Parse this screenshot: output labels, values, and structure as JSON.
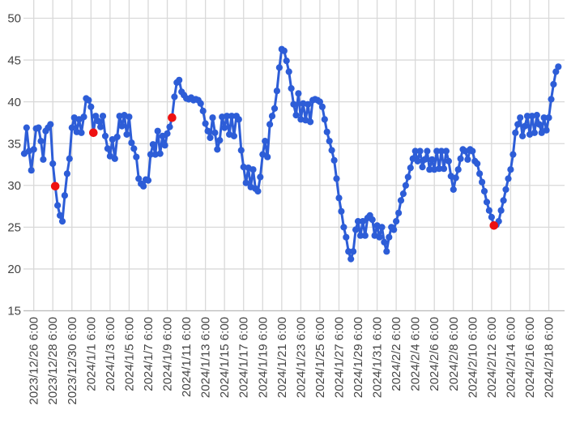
{
  "chart_data": {
    "type": "line",
    "title": "",
    "legend_position": "none",
    "grid": true,
    "y_axis": {
      "min": 15,
      "max": 50,
      "ticks": [
        15,
        20,
        25,
        30,
        35,
        40,
        45,
        50
      ]
    },
    "x_axis": {
      "label_rotation_degrees": 90,
      "first_tick_point_index": 4,
      "tick_every_n_points": 8,
      "tick_labels": [
        "2023/12/26 6:00",
        "2023/12/28 6:00",
        "2023/12/30 6:00",
        "2024/1/1 6:00",
        "2024/1/3 6:00",
        "2024/1/5 6:00",
        "2024/1/7 6:00",
        "2024/1/9 6:00",
        "2024/1/11 6:00",
        "2024/1/13 6:00",
        "2024/1/15 6:00",
        "2024/1/17 6:00",
        "2024/1/19 6:00",
        "2024/1/21 6:00",
        "2024/1/23 6:00",
        "2024/1/25 6:00",
        "2024/1/27 6:00",
        "2024/1/29 6:00",
        "2024/1/31 6:00",
        "2024/2/2 6:00",
        "2024/2/4 6:00",
        "2024/2/6 6:00",
        "2024/2/8 6:00",
        "2024/2/10 6:00",
        "2024/2/12 6:00",
        "2024/2/14 6:00",
        "2024/2/16 6:00",
        "2024/2/18 6:00"
      ]
    },
    "series": [
      {
        "name": "main-series",
        "start_time": "2023/12/25 6:00",
        "interval_hours": 6,
        "color": "#2d5dd7",
        "values": [
          33.8,
          36.9,
          34.1,
          31.8,
          34.3,
          36.8,
          36.9,
          35.3,
          33.1,
          36.5,
          36.9,
          37.3,
          32.6,
          29.9,
          27.6,
          26.4,
          25.7,
          28.8,
          31.4,
          33.2,
          36.9,
          38.1,
          36.4,
          37.9,
          36.3,
          38.2,
          40.4,
          40.2,
          39.4,
          36.3,
          38.3,
          37.7,
          37.0,
          38.3,
          35.9,
          34.4,
          33.5,
          35.5,
          33.2,
          35.8,
          38.3,
          37.1,
          38.4,
          36.1,
          38.2,
          35.1,
          34.4,
          33.4,
          30.8,
          30.2,
          29.9,
          30.7,
          30.6,
          33.7,
          34.9,
          33.7,
          36.5,
          33.8,
          35.9,
          34.8,
          36.2,
          37.0,
          38.1,
          40.6,
          42.3,
          42.6,
          41.2,
          40.8,
          40.4,
          40.3,
          40.5,
          40.2,
          40.3,
          40.2,
          39.8,
          38.9,
          37.4,
          36.5,
          35.7,
          38.1,
          36.3,
          34.3,
          35.4,
          38.2,
          36.9,
          38.3,
          36.1,
          38.3,
          35.9,
          38.3,
          37.9,
          34.2,
          32.2,
          30.3,
          32.1,
          29.8,
          31.9,
          29.6,
          29.3,
          31.0,
          33.7,
          35.3,
          33.4,
          37.3,
          38.3,
          39.2,
          41.3,
          44.1,
          46.3,
          46.1,
          44.9,
          43.6,
          41.6,
          39.7,
          38.4,
          41.0,
          37.9,
          39.8,
          37.8,
          39.7,
          37.6,
          40.2,
          40.3,
          40.2,
          40.0,
          39.4,
          37.9,
          36.4,
          35.3,
          34.2,
          33.0,
          30.8,
          28.5,
          26.9,
          25.0,
          23.8,
          22.1,
          21.2,
          22.1,
          24.7,
          25.7,
          24.0,
          25.7,
          24.0,
          26.1,
          26.4,
          25.9,
          24.0,
          25.2,
          23.8,
          25.0,
          23.2,
          22.1,
          23.8,
          25.0,
          24.7,
          25.7,
          26.7,
          28.2,
          29.0,
          30.0,
          31.0,
          32.1,
          33.2,
          34.1,
          32.9,
          34.1,
          32.2,
          33.1,
          34.1,
          31.9,
          33.1,
          31.9,
          34.1,
          32.0,
          34.1,
          32.0,
          34.1,
          32.9,
          31.1,
          29.5,
          30.9,
          31.9,
          33.2,
          34.3,
          34.1,
          33.1,
          34.3,
          34.1,
          32.9,
          32.6,
          31.4,
          30.4,
          29.3,
          28.0,
          27.0,
          26.2,
          25.2,
          25.3,
          25.7,
          27.0,
          28.2,
          29.5,
          30.8,
          31.9,
          33.7,
          36.3,
          37.3,
          38.1,
          35.9,
          37.1,
          38.3,
          36.1,
          38.3,
          36.3,
          38.4,
          37.3,
          36.3,
          38.1,
          36.6,
          38.1,
          40.3,
          42.1,
          43.6,
          44.2
        ]
      }
    ],
    "highlight_points": [
      {
        "index": 13,
        "time": "2023/12/28 12:00",
        "value": 29.9,
        "color": "#ee1111"
      },
      {
        "index": 29,
        "time": "2024/1/1 12:00",
        "value": 36.3,
        "color": "#ee1111"
      },
      {
        "index": 62,
        "time": "2024/1/9 18:00",
        "value": 38.1,
        "color": "#ee1111"
      },
      {
        "index": 197,
        "time": "2024/2/12 12:00",
        "value": 25.2,
        "color": "#ee1111"
      }
    ],
    "colors": {
      "series_blue": "#2d5dd7",
      "highlight_red": "#ee1111",
      "gridline": "#d9d9d9",
      "axis_line": "#bdbdbd",
      "tick_text": "#444444",
      "background": "#ffffff"
    }
  }
}
